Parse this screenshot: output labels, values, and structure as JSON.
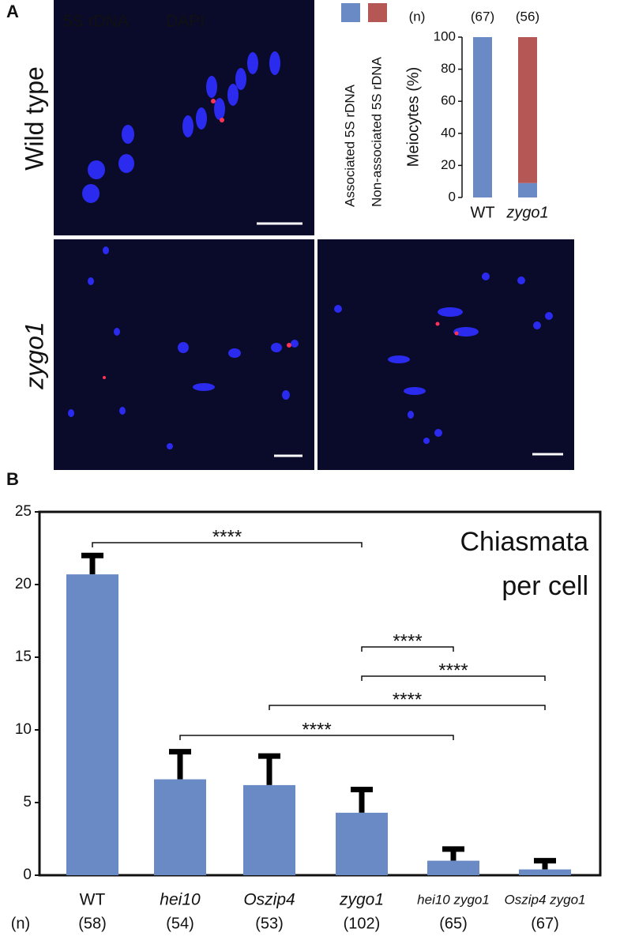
{
  "figure": {
    "panel_labels": [
      "A",
      "B"
    ],
    "image_legend": [
      {
        "text": "5S rDNA",
        "color": "#e8202a"
      },
      {
        "text": "DAPI",
        "color": "#2a2aff"
      }
    ],
    "row_labels": [
      "Wild type",
      "zygo1"
    ]
  },
  "chart_data": [
    {
      "type": "bar",
      "stacked": true,
      "categories": [
        "WT",
        "zygo1"
      ],
      "n_header": "(n)",
      "n_labels": [
        "(67)",
        "(56)"
      ],
      "y_label": "Meiocytes (%)",
      "ylim": [
        0,
        100
      ],
      "yticks": [
        0,
        20,
        40,
        60,
        80,
        100
      ],
      "series": [
        {
          "name": "Associated 5S rDNA",
          "color": "#6a8ac6",
          "values": [
            100,
            9
          ]
        },
        {
          "name": "Non-associated 5S rDNA",
          "color": "#b55755",
          "values": [
            0,
            91
          ]
        }
      ]
    },
    {
      "type": "bar",
      "title": [
        "Chiasmata",
        "per cell"
      ],
      "categories": [
        "WT",
        "hei10",
        "Oszip4",
        "zygo1",
        "hei10 zygo1",
        "Oszip4 zygo1"
      ],
      "values": [
        20.7,
        6.6,
        6.2,
        4.3,
        1.0,
        0.4
      ],
      "errors": [
        1.3,
        1.9,
        2.0,
        1.6,
        0.8,
        0.6
      ],
      "color": "#6a8ac6",
      "n_header": "(n)",
      "n_labels": [
        "(58)",
        "(54)",
        "(53)",
        "(102)",
        "(65)",
        "(67)"
      ],
      "ylim": [
        0,
        25
      ],
      "yticks": [
        0,
        5,
        10,
        15,
        20,
        25
      ],
      "comparisons": [
        {
          "from": 0,
          "to": 3,
          "label": "****"
        },
        {
          "from": 3,
          "to": 4,
          "label": "****"
        },
        {
          "from": 3,
          "to": 5,
          "label": "****"
        },
        {
          "from": 2,
          "to": 5,
          "label": "****"
        },
        {
          "from": 1,
          "to": 4,
          "label": "****"
        }
      ]
    }
  ]
}
